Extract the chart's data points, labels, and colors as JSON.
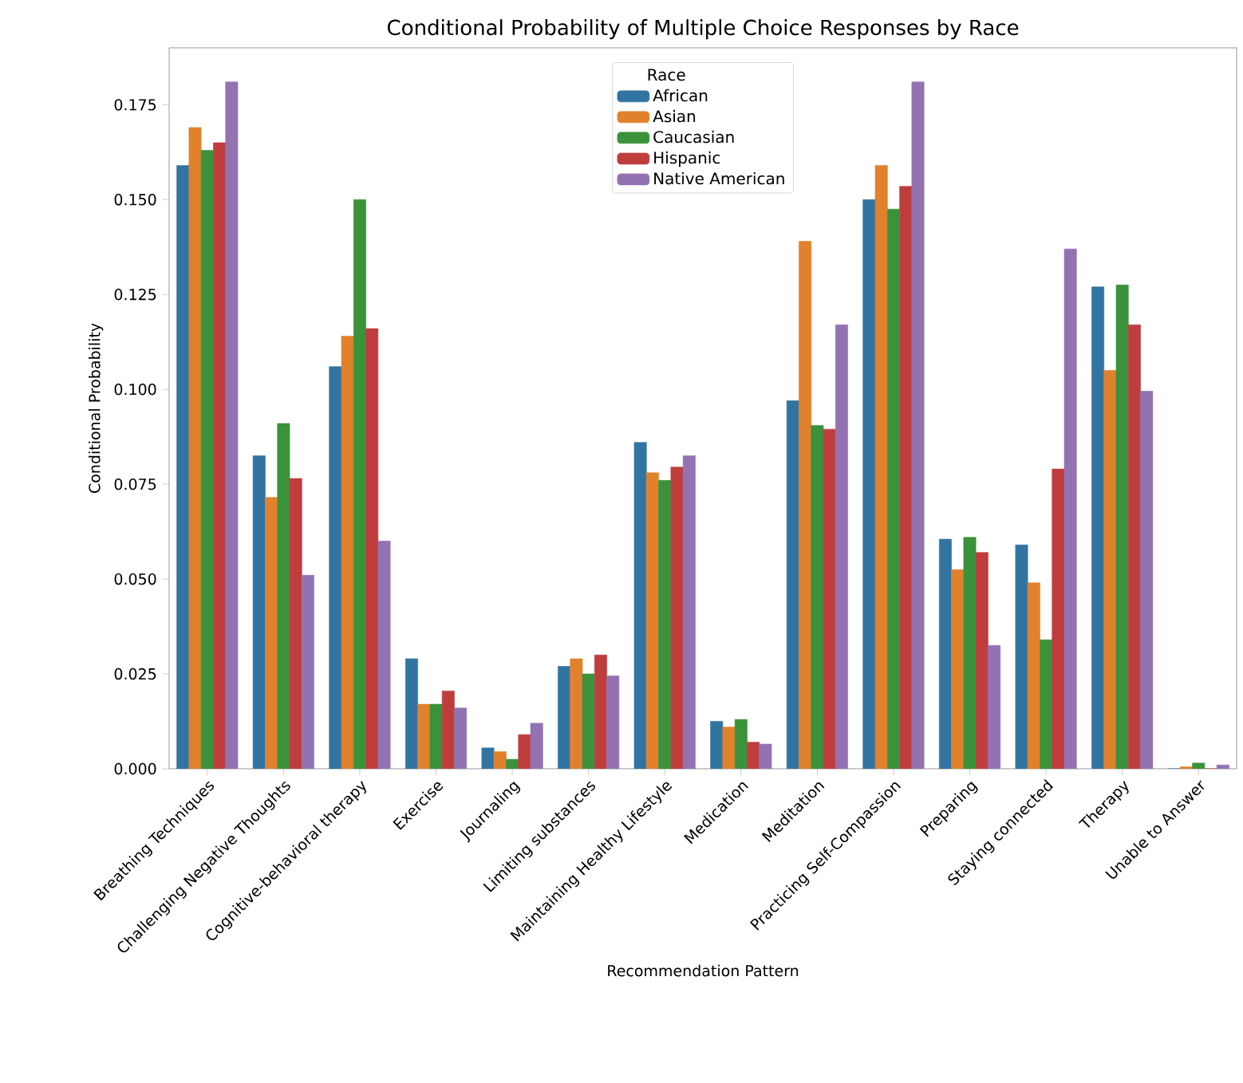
{
  "chart_data": {
    "type": "bar",
    "title": "Conditional Probability of Multiple Choice Responses by Race",
    "xlabel": "Recommendation Pattern",
    "ylabel": "Conditional Probability",
    "legend_title": "Race",
    "legend": "top",
    "categories": [
      "Breathing Techniques",
      "Challenging Negative Thoughts",
      "Cognitive-behavioral therapy",
      "Exercise",
      "Journaling",
      "Limiting substances",
      "Maintaining Healthy Lifestyle",
      "Medication",
      "Meditation",
      "Practicing Self-Compassion",
      "Preparing",
      "Staying connected",
      "Therapy",
      "Unable to Answer"
    ],
    "ylim": [
      0,
      0.19
    ],
    "yticks": [
      {
        "value": 0,
        "label": "0.000"
      },
      {
        "value": 0.025,
        "label": "0.025"
      },
      {
        "value": 0.05,
        "label": "0.050"
      },
      {
        "value": 0.075,
        "label": "0.075"
      },
      {
        "value": 0.1,
        "label": "0.100"
      },
      {
        "value": 0.125,
        "label": "0.125"
      },
      {
        "value": 0.15,
        "label": "0.150"
      },
      {
        "value": 0.175,
        "label": "0.175"
      }
    ],
    "series": [
      {
        "name": "African",
        "color": "#3274a1",
        "values": [
          0.159,
          0.0825,
          0.106,
          0.029,
          0.0055,
          0.027,
          0.086,
          0.0125,
          0.097,
          0.15,
          0.0605,
          0.059,
          0.127,
          0
        ]
      },
      {
        "name": "Asian",
        "color": "#e1812c",
        "values": [
          0.169,
          0.0715,
          0.114,
          0.017,
          0.0045,
          0.029,
          0.078,
          0.011,
          0.139,
          0.159,
          0.0525,
          0.049,
          0.105,
          0.0005
        ]
      },
      {
        "name": "Caucasian",
        "color": "#3a923a",
        "values": [
          0.163,
          0.091,
          0.15,
          0.017,
          0.0025,
          0.025,
          0.076,
          0.013,
          0.0905,
          0.1475,
          0.061,
          0.034,
          0.1275,
          0.0015
        ]
      },
      {
        "name": "Hispanic",
        "color": "#c03d3e",
        "values": [
          0.165,
          0.0765,
          0.116,
          0.0205,
          0.009,
          0.03,
          0.0795,
          0.007,
          0.0895,
          0.1535,
          0.057,
          0.079,
          0.117,
          0
        ]
      },
      {
        "name": "Native American",
        "color": "#9372b2",
        "values": [
          0.181,
          0.051,
          0.06,
          0.016,
          0.012,
          0.0245,
          0.0825,
          0.0065,
          0.117,
          0.181,
          0.0325,
          0.137,
          0.0995,
          0.001
        ]
      }
    ]
  }
}
